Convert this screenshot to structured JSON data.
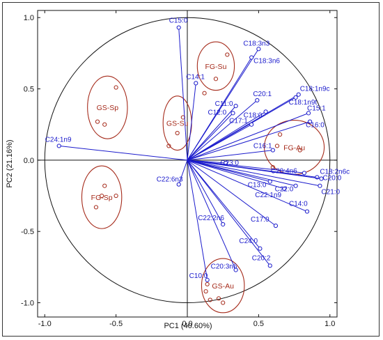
{
  "colors": {
    "vector": "#1a1acc",
    "group": "#a52a1a",
    "axis": "#111111",
    "frame": "#333333"
  },
  "chart_data": {
    "type": "scatter",
    "xlabel": "PC1 (40.60%)",
    "ylabel": "PC2 (21.16%)",
    "xlim": [
      -1.05,
      1.05
    ],
    "ylim": [
      -1.1,
      1.05
    ],
    "xticks": [
      "-1.0",
      "-0.5",
      "0.0",
      "0.5",
      "1.0"
    ],
    "yticks": [
      "1.0",
      "0.5",
      "0.0",
      "-0.5",
      "-1.0"
    ],
    "unit_circle": true,
    "grid": false,
    "loadings": [
      {
        "name": "C15:0",
        "x": -0.06,
        "y": 0.93
      },
      {
        "name": "C18:3n3",
        "x": 0.5,
        "y": 0.78
      },
      {
        "name": "C18:3n6",
        "x": 0.45,
        "y": 0.72
      },
      {
        "name": "C14:1",
        "x": 0.06,
        "y": 0.54
      },
      {
        "name": "C20:1",
        "x": 0.49,
        "y": 0.42
      },
      {
        "name": "C11:0",
        "x": 0.34,
        "y": 0.38
      },
      {
        "name": "C12:0",
        "x": 0.32,
        "y": 0.33
      },
      {
        "name": "C18:1n9c",
        "x": 0.78,
        "y": 0.46
      },
      {
        "name": "C18:1n9t",
        "x": 0.76,
        "y": 0.44
      },
      {
        "name": "C18:0",
        "x": 0.55,
        "y": 0.34
      },
      {
        "name": "C17:1",
        "x": 0.45,
        "y": 0.25
      },
      {
        "name": "C15:1",
        "x": 0.85,
        "y": 0.33
      },
      {
        "name": "C16:0",
        "x": 0.86,
        "y": 0.27
      },
      {
        "name": "C16:1",
        "x": 0.6,
        "y": 0.07
      },
      {
        "name": "C24:1n9",
        "x": -0.9,
        "y": 0.1
      },
      {
        "name": "C23:0",
        "x": 0.27,
        "y": -0.02
      },
      {
        "name": "C20:4n6",
        "x": 0.82,
        "y": -0.09
      },
      {
        "name": "C18:2n6c",
        "x": 0.91,
        "y": -0.12
      },
      {
        "name": "C13:0",
        "x": 0.58,
        "y": -0.15
      },
      {
        "name": "C22:6n3",
        "x": -0.06,
        "y": -0.17
      },
      {
        "name": "C22:0",
        "x": 0.76,
        "y": -0.18
      },
      {
        "name": "C20:0",
        "x": 0.94,
        "y": -0.13
      },
      {
        "name": "C21:0",
        "x": 0.93,
        "y": -0.18
      },
      {
        "name": "C22:1n9",
        "x": 0.68,
        "y": -0.2
      },
      {
        "name": "C14:0",
        "x": 0.84,
        "y": -0.36
      },
      {
        "name": "C17:0",
        "x": 0.62,
        "y": -0.46
      },
      {
        "name": "C22:2n6",
        "x": 0.25,
        "y": -0.45
      },
      {
        "name": "C24:0",
        "x": 0.51,
        "y": -0.62
      },
      {
        "name": "C20:2",
        "x": 0.58,
        "y": -0.74
      },
      {
        "name": "C20:3n6",
        "x": 0.34,
        "y": -0.77
      },
      {
        "name": "C10:0",
        "x": 0.14,
        "y": -0.84
      }
    ],
    "groups": [
      {
        "name": "FG-Su",
        "cx": 0.2,
        "cy": 0.66,
        "rx": 0.13,
        "ry": 0.17,
        "points": [
          [
            0.28,
            0.74
          ],
          [
            0.2,
            0.57
          ],
          [
            0.12,
            0.47
          ]
        ]
      },
      {
        "name": "GS-Sp",
        "cx": -0.56,
        "cy": 0.37,
        "rx": 0.14,
        "ry": 0.22,
        "points": [
          [
            -0.5,
            0.51
          ],
          [
            -0.63,
            0.27
          ],
          [
            -0.58,
            0.25
          ]
        ]
      },
      {
        "name": "GS-Su",
        "cx": -0.07,
        "cy": 0.26,
        "rx": 0.1,
        "ry": 0.19,
        "points": [
          [
            -0.03,
            0.3
          ],
          [
            -0.07,
            0.19
          ],
          [
            -0.13,
            0.1
          ]
        ]
      },
      {
        "name": "FG-Au",
        "cx": 0.75,
        "cy": 0.09,
        "rx": 0.21,
        "ry": 0.19,
        "points": [
          [
            0.65,
            0.18
          ],
          [
            0.63,
            0.1
          ],
          [
            0.79,
            0.07
          ],
          [
            0.6,
            -0.05
          ]
        ]
      },
      {
        "name": "FG-Sp",
        "cx": -0.6,
        "cy": -0.26,
        "rx": 0.14,
        "ry": 0.22,
        "points": [
          [
            -0.58,
            -0.18
          ],
          [
            -0.5,
            -0.25
          ],
          [
            -0.6,
            -0.25
          ],
          [
            -0.64,
            -0.33
          ]
        ]
      },
      {
        "name": "GS-Au",
        "cx": 0.25,
        "cy": -0.88,
        "rx": 0.15,
        "ry": 0.19,
        "points": [
          [
            0.14,
            -0.87
          ],
          [
            0.13,
            -0.92
          ],
          [
            0.22,
            -0.97
          ],
          [
            0.16,
            -0.98
          ],
          [
            0.25,
            -1.0
          ]
        ]
      }
    ]
  }
}
